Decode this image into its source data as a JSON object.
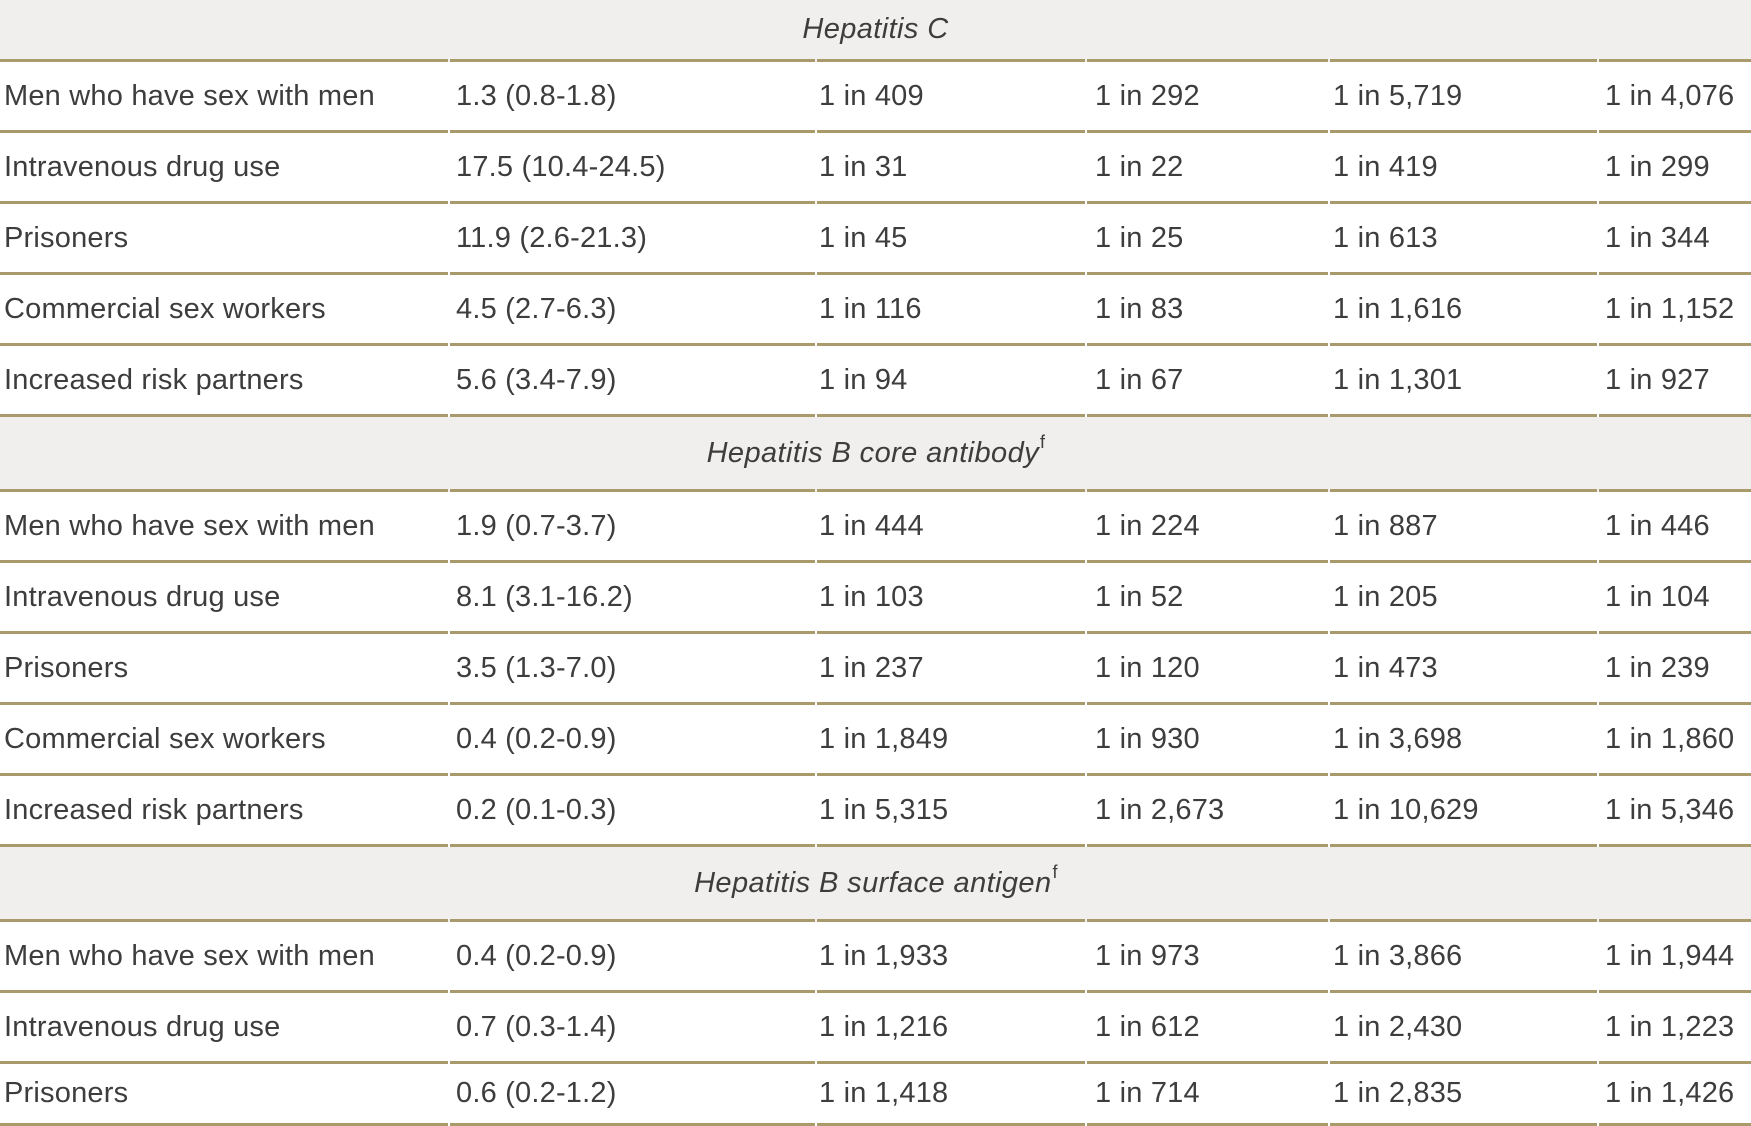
{
  "table": {
    "description_colors": {
      "rule_line": "#a89a6b",
      "section_band_bg": "#f0efed",
      "text": "#3d3d3d"
    },
    "sections": [
      {
        "title": "Hepatitis C",
        "footnote_marker": "",
        "rows": [
          {
            "cells": [
              "Men who have sex with men",
              "1.3 (0.8-1.8)",
              "1 in 409",
              "1 in 292",
              "1 in 5,719",
              "1 in 4,076"
            ]
          },
          {
            "cells": [
              "Intravenous drug use",
              "17.5 (10.4-24.5)",
              "1 in 31",
              "1 in 22",
              "1 in 419",
              "1 in 299"
            ]
          },
          {
            "cells": [
              "Prisoners",
              "11.9 (2.6-21.3)",
              "1 in 45",
              "1 in 25",
              "1 in 613",
              "1 in 344"
            ]
          },
          {
            "cells": [
              "Commercial sex workers",
              "4.5 (2.7-6.3)",
              "1 in 116",
              "1 in 83",
              "1 in 1,616",
              "1 in 1,152"
            ]
          },
          {
            "cells": [
              "Increased risk partners",
              "5.6 (3.4-7.9)",
              "1 in 94",
              "1 in 67",
              "1 in 1,301",
              "1 in 927"
            ]
          }
        ]
      },
      {
        "title": "Hepatitis B core antibody",
        "footnote_marker": "f",
        "rows": [
          {
            "cells": [
              "Men who have sex with men",
              "1.9 (0.7-3.7)",
              "1 in 444",
              "1 in 224",
              "1 in 887",
              "1 in 446"
            ]
          },
          {
            "cells": [
              "Intravenous drug use",
              "8.1 (3.1-16.2)",
              "1 in 103",
              "1 in 52",
              "1 in 205",
              "1 in 104"
            ]
          },
          {
            "cells": [
              "Prisoners",
              "3.5 (1.3-7.0)",
              "1 in 237",
              "1 in 120",
              "1 in 473",
              "1 in 239"
            ]
          },
          {
            "cells": [
              "Commercial sex workers",
              "0.4 (0.2-0.9)",
              "1 in 1,849",
              "1 in 930",
              "1 in 3,698",
              "1 in 1,860"
            ]
          },
          {
            "cells": [
              "Increased risk partners",
              "0.2 (0.1-0.3)",
              "1 in 5,315",
              "1 in 2,673",
              "1 in 10,629",
              "1 in 5,346"
            ]
          }
        ]
      },
      {
        "title": "Hepatitis B surface antigen",
        "footnote_marker": "f",
        "rows": [
          {
            "cells": [
              "Men who have sex with men",
              "0.4 (0.2-0.9)",
              "1 in 1,933",
              "1 in 973",
              "1 in 3,866",
              "1 in 1,944"
            ]
          },
          {
            "cells": [
              "Intravenous drug use",
              "0.7 (0.3-1.4)",
              "1 in 1,216",
              "1 in 612",
              "1 in 2,430",
              "1 in 1,223"
            ]
          },
          {
            "cells": [
              "Prisoners",
              "0.6 (0.2-1.2)",
              "1 in 1,418",
              "1 in 714",
              "1 in 2,835",
              "1 in 1,426"
            ]
          }
        ]
      }
    ]
  }
}
